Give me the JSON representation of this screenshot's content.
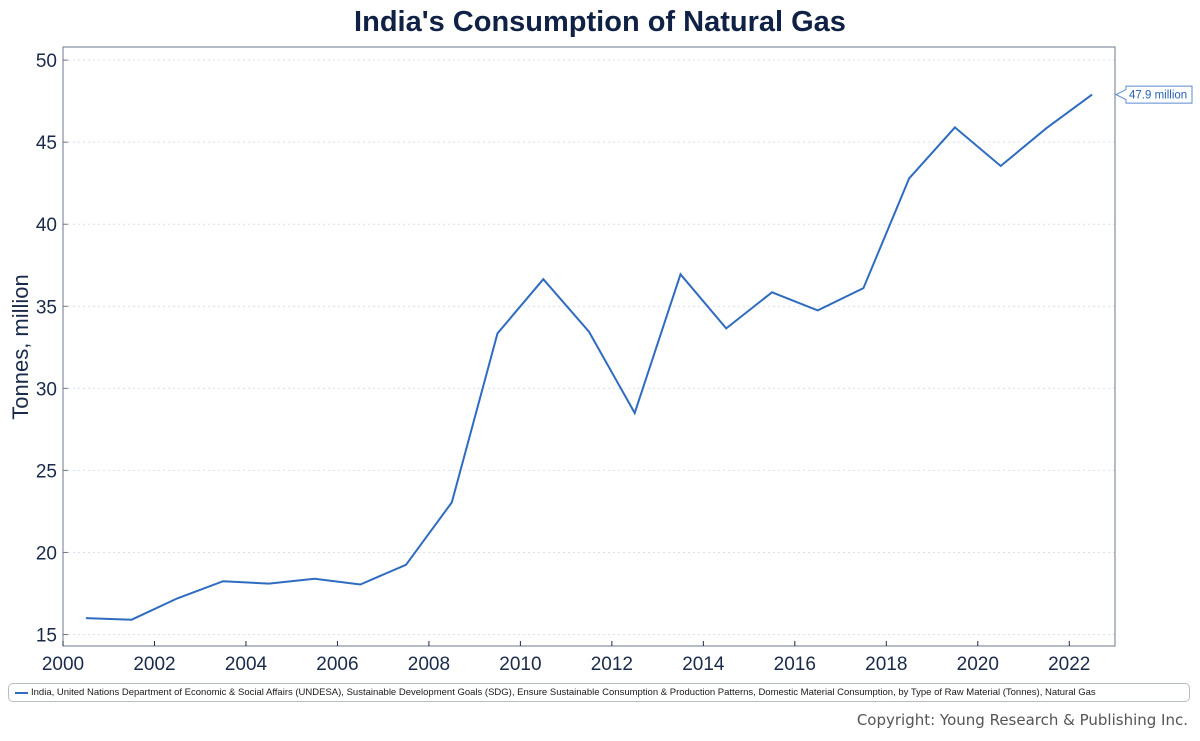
{
  "chart_data": {
    "type": "line",
    "title": "India's Consumption of Natural Gas",
    "xlabel": "",
    "ylabel": "Tonnes, million",
    "xlim": [
      2000,
      2023
    ],
    "ylim": [
      14.3,
      50.8
    ],
    "x_ticks": [
      2000,
      2002,
      2004,
      2006,
      2008,
      2010,
      2012,
      2014,
      2016,
      2018,
      2020,
      2022
    ],
    "y_ticks": [
      15,
      20,
      25,
      30,
      35,
      40,
      45,
      50
    ],
    "grid": "horizontal-dotted",
    "series": [
      {
        "name": "India, United Nations Department of Economic & Social Affairs (UNDESA), Sustainable Development Goals (SDG), Ensure Sustainable Consumption & Production Patterns, Domestic Material Consumption, by Type of Raw Material (Tonnes), Natural Gas",
        "color": "#2f6cc0",
        "x": [
          2000.5,
          2001.5,
          2002.5,
          2003.5,
          2004.5,
          2005.5,
          2006.5,
          2007.5,
          2008.5,
          2009.5,
          2010.5,
          2011.5,
          2012.5,
          2013.5,
          2014.5,
          2015.5,
          2016.5,
          2017.5,
          2018.5,
          2019.5,
          2020.5,
          2021.5,
          2022.5
        ],
        "values": [
          16.0,
          15.9,
          17.2,
          18.25,
          18.1,
          18.4,
          18.05,
          19.25,
          23.05,
          33.35,
          36.65,
          33.45,
          28.5,
          36.95,
          33.65,
          35.85,
          34.75,
          36.1,
          42.8,
          45.9,
          43.55,
          45.85,
          47.9
        ]
      }
    ],
    "annotations": [
      {
        "text": "47.9 million",
        "x": 2022.5,
        "y": 47.9,
        "placement": "right-edge callout"
      }
    ],
    "legend": {
      "placement": "bottom"
    }
  },
  "legend_label": "India, United Nations Department of Economic & Social Affairs (UNDESA), Sustainable Development Goals (SDG), Ensure Sustainable Consumption & Production Patterns, Domestic Material Consumption, by Type of Raw Material (Tonnes), Natural Gas",
  "copyright": "Copyright: Young Research & Publishing Inc.",
  "colors": {
    "line": "#2f6cc0",
    "title": "#0f2144",
    "axis": "#6b7a90"
  }
}
